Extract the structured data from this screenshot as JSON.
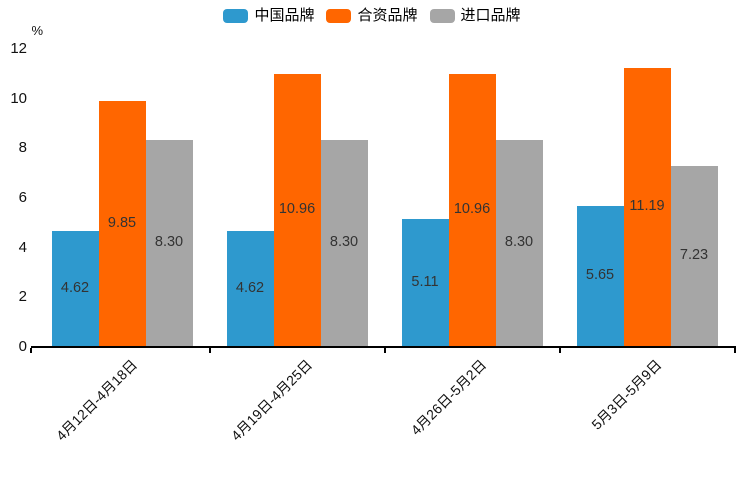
{
  "chart_data": {
    "type": "bar",
    "legend_position": "top",
    "value_labels": "inside-center",
    "label_decimals": 2,
    "background": "#FFFFFF",
    "axis_color": "#000000",
    "value_label_color": "#333333",
    "categories": [
      "4月12日-4月18日",
      "4月19日-4月25日",
      "4月26日-5月2日",
      "5月3日-5月9日"
    ],
    "series": [
      {
        "name": "中国品牌",
        "color": "#2E99CE",
        "values": [
          4.62,
          4.62,
          5.11,
          5.65
        ]
      },
      {
        "name": "合资品牌",
        "color": "#FF6600",
        "values": [
          9.85,
          10.96,
          10.96,
          11.19
        ]
      },
      {
        "name": "进口品牌",
        "color": "#A6A6A6",
        "values": [
          8.3,
          8.3,
          8.3,
          7.23
        ]
      }
    ],
    "y_axis": {
      "unit": "%",
      "min": 0,
      "max": 12,
      "tick_interval": 2,
      "ticks": [
        0,
        2,
        4,
        6,
        8,
        10,
        12
      ]
    },
    "x_axis_labels_rotation_deg": 45,
    "grid": false
  }
}
